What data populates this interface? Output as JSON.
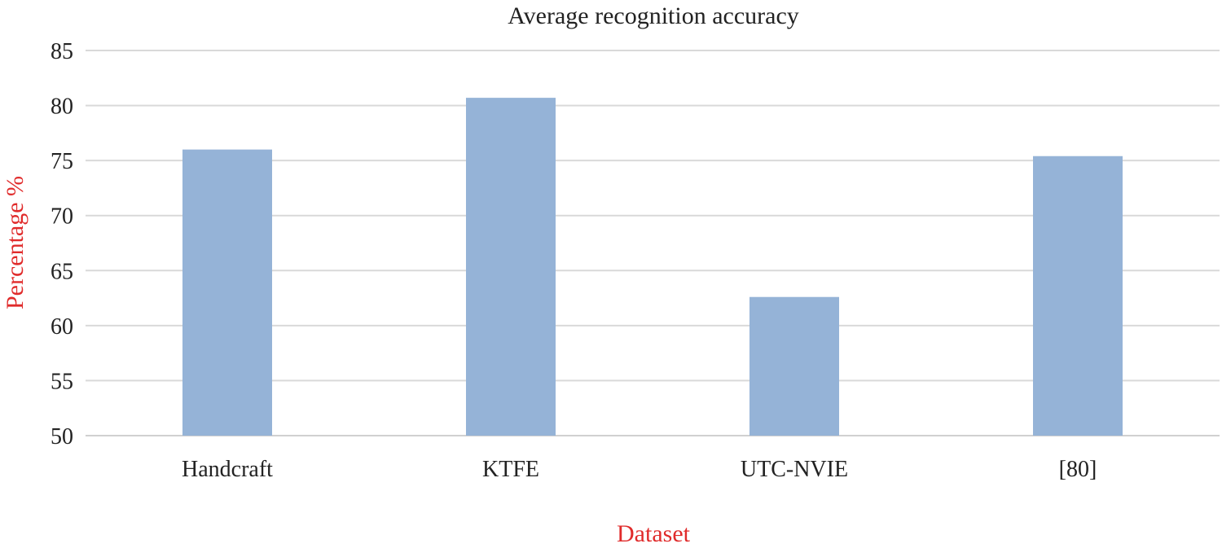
{
  "chart_data": {
    "type": "bar",
    "title": "Average recognition accuracy",
    "xlabel": "Dataset",
    "ylabel": "Percentage %",
    "categories": [
      "Handcraft",
      "KTFE",
      "UTC-NVIE",
      "[80]"
    ],
    "values": [
      76.0,
      80.7,
      62.6,
      75.4
    ],
    "ylim": [
      50,
      85
    ],
    "yticks": [
      50,
      55,
      60,
      65,
      70,
      75,
      80,
      85
    ],
    "grid": true,
    "legend": "none",
    "bar_color": "#95b3d7",
    "axis_label_color": "#e02b2b"
  }
}
